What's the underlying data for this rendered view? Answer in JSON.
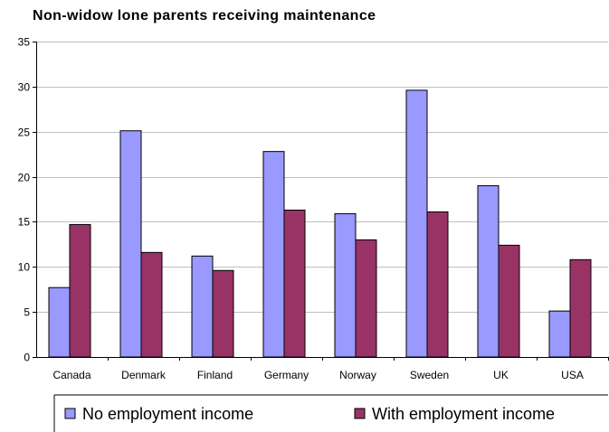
{
  "chart_data": {
    "type": "bar",
    "title": "Non-widow lone parents receiving maintenance",
    "xlabel": "",
    "ylabel": "",
    "categories": [
      "Canada",
      "Denmark",
      "Finland",
      "Germany",
      "Norway",
      "Sweden",
      "UK",
      "USA"
    ],
    "series": [
      {
        "name": "No employment income",
        "color": "#9999ff",
        "values": [
          7.7,
          25.1,
          11.2,
          22.8,
          15.9,
          29.6,
          19.0,
          5.1
        ]
      },
      {
        "name": "With employment income",
        "color": "#993366",
        "values": [
          14.7,
          11.6,
          9.6,
          16.3,
          13.0,
          16.1,
          12.4,
          10.8
        ]
      }
    ],
    "ylim": [
      0,
      35
    ],
    "yticks": [
      "0",
      "5",
      "10",
      "15",
      "20",
      "25",
      "30",
      "35"
    ],
    "grid": true,
    "legend_position": "bottom"
  }
}
